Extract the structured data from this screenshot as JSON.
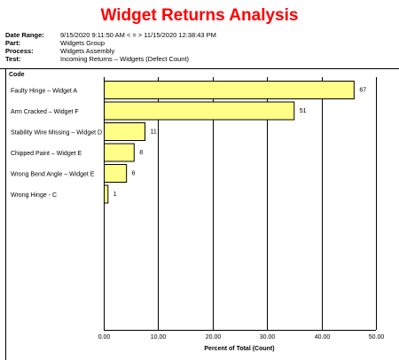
{
  "title": "Widget Returns Analysis",
  "meta": [
    {
      "key": "Date Range:",
      "value": "9/15/2020 9:11:50 AM < = > 11/15/2020 12:38:43 PM"
    },
    {
      "key": "Part:",
      "value": "Widgets Group"
    },
    {
      "key": "Process:",
      "value": "Widgets Assembly"
    },
    {
      "key": "Test:",
      "value": "Incoming Returns – Widgets (Defect Count)"
    }
  ],
  "colors": {
    "title": "#ff0000",
    "bar_fill": "#ffff88",
    "bar_stroke": "#000000"
  },
  "chart_data": {
    "type": "bar",
    "orientation": "horizontal",
    "code_label": "Code",
    "xlabel": "Percent of Total (Count)",
    "xlim": [
      0,
      50
    ],
    "xticks": [
      "0.00",
      "10.00",
      "20.00",
      "30.00",
      "40.00",
      "50.00"
    ],
    "grid": true,
    "categories": [
      "Faulty Hinge – Widget A",
      "Arm Cracked – Widget F",
      "Stability Wire Missing – Widget D",
      "Chipped Paint – Widget E",
      "Wrong Bend Angle – Widget E",
      "Wrong Hinge - C"
    ],
    "percent_values": [
      45.9,
      34.9,
      7.5,
      5.5,
      4.1,
      0.7
    ],
    "count_labels": [
      "67",
      "51",
      "11",
      "8",
      "6",
      "1"
    ]
  }
}
